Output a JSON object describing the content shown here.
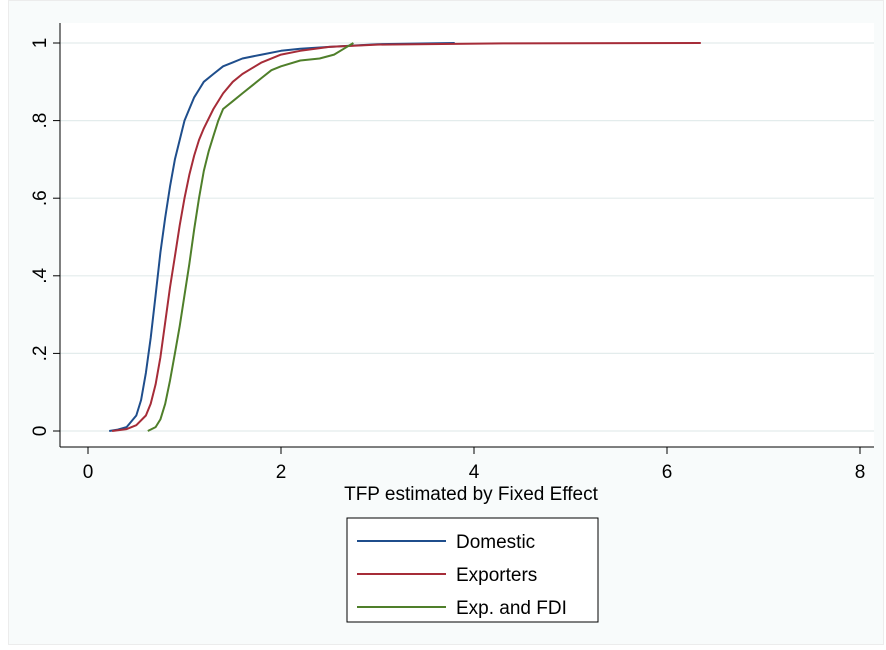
{
  "chart_data": {
    "type": "line",
    "xlabel": "TFP estimated by Fixed Effect",
    "ylabel": "",
    "xlim": [
      0,
      8
    ],
    "ylim": [
      0,
      1
    ],
    "xticks": [
      0,
      2,
      4,
      6,
      8
    ],
    "yticks": [
      0,
      0.2,
      0.4,
      0.6,
      0.8,
      1
    ],
    "xtick_labels": [
      "0",
      "2",
      "4",
      "6",
      "8"
    ],
    "ytick_labels": [
      "0",
      ".2",
      ".4",
      ".6",
      ".8",
      "1"
    ],
    "grid": "horizontal",
    "legend_position": "bottom",
    "series": [
      {
        "name": "Domestic",
        "color": "#1f4e8c",
        "x": [
          0.22,
          0.3,
          0.4,
          0.5,
          0.55,
          0.6,
          0.65,
          0.7,
          0.75,
          0.8,
          0.85,
          0.9,
          0.95,
          1.0,
          1.05,
          1.1,
          1.15,
          1.2,
          1.3,
          1.4,
          1.5,
          1.6,
          1.8,
          2.0,
          2.2,
          2.5,
          3.0,
          3.8
        ],
        "y": [
          0.0,
          0.003,
          0.01,
          0.04,
          0.08,
          0.15,
          0.24,
          0.35,
          0.46,
          0.55,
          0.63,
          0.7,
          0.75,
          0.8,
          0.83,
          0.86,
          0.88,
          0.9,
          0.92,
          0.94,
          0.95,
          0.96,
          0.97,
          0.98,
          0.985,
          0.99,
          0.997,
          1.0
        ]
      },
      {
        "name": "Exporters",
        "color": "#a62c38",
        "x": [
          0.25,
          0.4,
          0.5,
          0.6,
          0.65,
          0.7,
          0.75,
          0.8,
          0.85,
          0.9,
          0.95,
          1.0,
          1.05,
          1.1,
          1.15,
          1.2,
          1.3,
          1.4,
          1.5,
          1.6,
          1.7,
          1.8,
          2.0,
          2.2,
          2.5,
          3.0,
          4.3,
          6.35
        ],
        "y": [
          0.0,
          0.005,
          0.015,
          0.04,
          0.07,
          0.12,
          0.19,
          0.28,
          0.37,
          0.45,
          0.53,
          0.6,
          0.66,
          0.71,
          0.75,
          0.78,
          0.83,
          0.87,
          0.9,
          0.92,
          0.935,
          0.95,
          0.97,
          0.98,
          0.99,
          0.996,
          0.999,
          1.0
        ]
      },
      {
        "name": "Exp. and FDI",
        "color": "#4f7f2a",
        "x": [
          0.62,
          0.7,
          0.75,
          0.8,
          0.85,
          0.9,
          0.95,
          1.0,
          1.05,
          1.1,
          1.15,
          1.2,
          1.25,
          1.3,
          1.35,
          1.4,
          1.5,
          1.6,
          1.7,
          1.8,
          1.9,
          2.0,
          2.2,
          2.4,
          2.55,
          2.65,
          2.75
        ],
        "y": [
          0.0,
          0.01,
          0.03,
          0.07,
          0.13,
          0.2,
          0.27,
          0.35,
          0.43,
          0.52,
          0.6,
          0.67,
          0.72,
          0.76,
          0.8,
          0.83,
          0.85,
          0.87,
          0.89,
          0.91,
          0.93,
          0.94,
          0.955,
          0.96,
          0.97,
          0.985,
          1.0
        ]
      }
    ]
  }
}
